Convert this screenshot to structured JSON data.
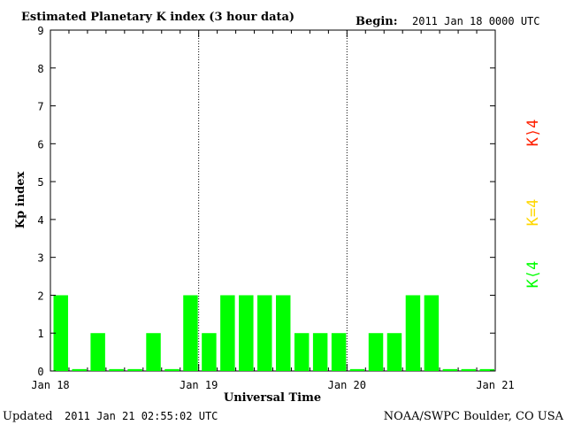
{
  "chart_data": {
    "type": "bar",
    "title": "Estimated Planetary K index (3 hour data)",
    "begin_label": "Begin:",
    "begin_value": "2011 Jan 18 0000 UTC",
    "xlabel": "Universal Time",
    "ylabel": "Kp index",
    "ylim": [
      0,
      9
    ],
    "yticks": [
      "0",
      "1",
      "2",
      "3",
      "4",
      "5",
      "6",
      "7",
      "8",
      "9"
    ],
    "x_tick_labels": [
      "Jan 18",
      "Jan 19",
      "Jan 20",
      "Jan 21"
    ],
    "bar_color": "#00ff00",
    "day_separators": [
      "Jan 19",
      "Jan 20"
    ],
    "values": [
      2,
      0.05,
      1,
      0.05,
      0.05,
      1,
      0.05,
      2,
      1,
      2,
      2,
      2,
      2,
      1,
      1,
      1,
      0.05,
      1,
      1,
      2,
      2,
      0.05,
      0.05,
      0.05
    ],
    "legend": [
      {
        "label": "K⟨4",
        "color": "#00ff00"
      },
      {
        "label": "K=4",
        "color": "#ffd700"
      },
      {
        "label": "K⟩4",
        "color": "#ff2000"
      }
    ],
    "grid": false
  },
  "footer": {
    "updated_label": "Updated",
    "updated_value": "2011 Jan 21 02:55:02 UTC",
    "source": "NOAA/SWPC Boulder, CO USA"
  }
}
